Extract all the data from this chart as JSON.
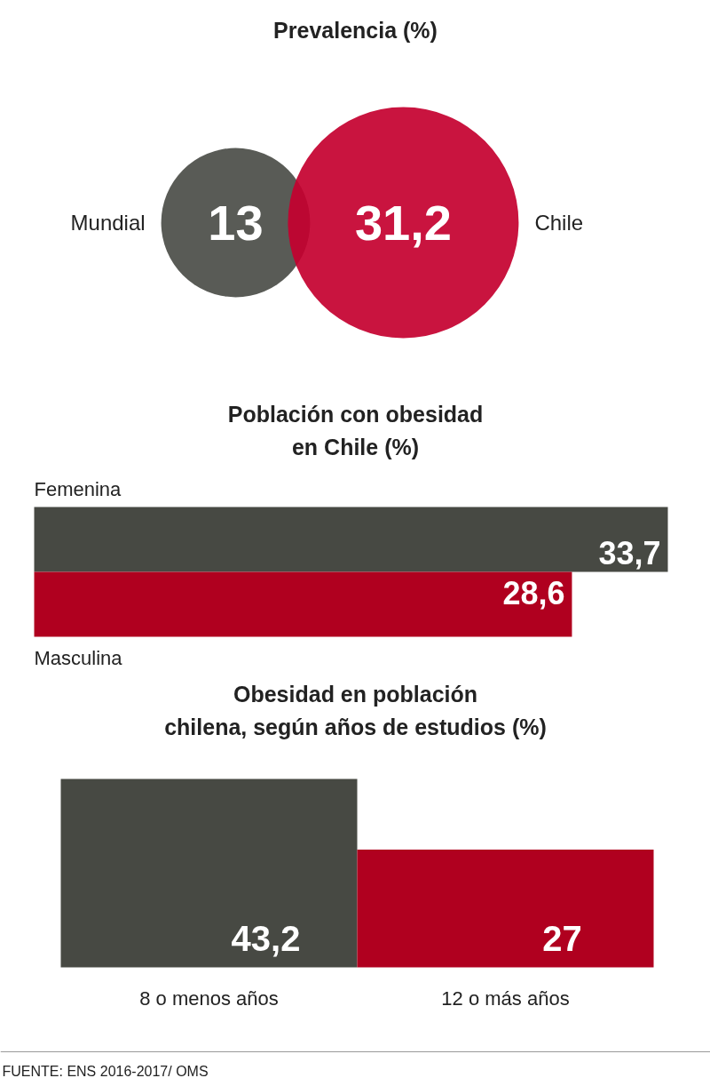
{
  "chart_data": [
    {
      "type": "other",
      "title": "Prevalencia (%)",
      "series": [
        {
          "name": "Mundial",
          "color": "#4b4d48",
          "values": [
            13
          ],
          "value_labels": [
            "13"
          ]
        },
        {
          "name": "Chile",
          "color": "#c4002f",
          "values": [
            31.2
          ],
          "value_labels": [
            "31,2"
          ]
        }
      ]
    },
    {
      "type": "bar",
      "orientation": "horizontal",
      "title": "Población con obesidad\nen Chile (%)",
      "categories": [
        "Femenina",
        "Masculina"
      ],
      "values": [
        33.7,
        28.6
      ],
      "value_labels": [
        "33,7",
        "28,6"
      ],
      "colors": [
        "#474943",
        "#b0001f"
      ]
    },
    {
      "type": "bar",
      "title": "Obesidad en población\nchilena, según años de estudios (%)",
      "categories": [
        "8 o menos años",
        "12 o más años"
      ],
      "values": [
        43.2,
        27
      ],
      "value_labels": [
        "43,2",
        "27"
      ],
      "colors": [
        "#474943",
        "#b0001f"
      ],
      "annotations": [
        "FUENTE: ENS 2016-2017/ OMS"
      ]
    }
  ]
}
